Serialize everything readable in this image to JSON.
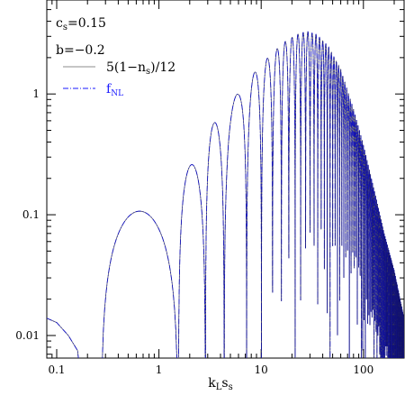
{
  "chart_data": {
    "type": "line",
    "title": "",
    "xlabel": "k_L s_s",
    "ylabel": "",
    "xscale": "log",
    "yscale": "log",
    "xlim": [
      0.08,
      250
    ],
    "ylim": [
      0.0065,
      6
    ],
    "x_ticks": [
      0.1,
      1,
      10,
      100
    ],
    "x_tick_labels": [
      "0.1",
      "1",
      "10",
      "100"
    ],
    "y_ticks": [
      0.01,
      0.1,
      1
    ],
    "y_tick_labels": [
      "0.01",
      "0.1",
      "1"
    ],
    "grid": false,
    "annotations": [
      {
        "text": "c_s=0.15"
      },
      {
        "text": "b=−0.2"
      }
    ],
    "legend": {
      "placement": "top-left",
      "entries": [
        {
          "label": "5(1−n_s)/12",
          "color": "#8c8c8c",
          "style": "solid"
        },
        {
          "label": "f_NL",
          "color": "#1a1aff",
          "style": "dash-dot"
        }
      ]
    },
    "series": [
      {
        "name": "5(1−n_s)/12",
        "color": "#8c8c8c",
        "style": "solid",
        "points": [
          [
            0.08,
            0.0139
          ],
          [
            0.1,
            0.0128
          ],
          [
            0.13,
            0.01
          ],
          [
            0.16,
            0.0075
          ],
          [
            0.27,
            0.0065
          ],
          [
            0.4,
            0.055
          ],
          [
            0.6,
            0.089
          ],
          [
            0.85,
            0.105
          ],
          [
            1.0,
            0.107
          ],
          [
            1.2,
            0.095
          ],
          [
            1.45,
            0.06
          ],
          [
            1.6,
            0.01
          ],
          [
            1.9,
            0.1
          ],
          [
            2.2,
            0.22
          ],
          [
            2.4,
            0.26
          ],
          [
            2.7,
            0.2
          ],
          [
            2.9,
            0.01
          ],
          [
            3.2,
            0.3
          ],
          [
            3.7,
            0.58
          ],
          [
            4.2,
            0.35
          ],
          [
            4.6,
            0.01
          ],
          [
            10,
            0.02
          ],
          [
            30,
            2.4
          ],
          [
            100,
            0.12
          ],
          [
            250,
            0.011
          ]
        ],
        "envelope": [
          [
            4.8,
            0.85
          ],
          [
            6,
            1.02
          ],
          [
            8,
            1.4
          ],
          [
            10,
            1.75
          ],
          [
            13,
            2.2
          ],
          [
            17,
            2.7
          ],
          [
            22,
            3.1
          ],
          [
            28,
            3.3
          ],
          [
            35,
            3.1
          ],
          [
            45,
            2.5
          ],
          [
            60,
            1.6
          ],
          [
            80,
            0.75
          ],
          [
            100,
            0.38
          ],
          [
            130,
            0.15
          ],
          [
            160,
            0.07
          ],
          [
            200,
            0.035
          ],
          [
            250,
            0.014
          ]
        ]
      },
      {
        "name": "f_NL",
        "color": "#1a1aff",
        "style": "dash-dot",
        "points": [
          [
            0.08,
            0.0139
          ],
          [
            0.1,
            0.0128
          ],
          [
            0.13,
            0.01
          ],
          [
            0.16,
            0.0075
          ],
          [
            0.27,
            0.0065
          ],
          [
            0.4,
            0.055
          ],
          [
            0.6,
            0.089
          ],
          [
            0.85,
            0.105
          ],
          [
            1.0,
            0.107
          ],
          [
            1.2,
            0.095
          ],
          [
            1.45,
            0.06
          ],
          [
            1.6,
            0.01
          ],
          [
            1.9,
            0.1
          ],
          [
            2.2,
            0.22
          ],
          [
            2.4,
            0.26
          ],
          [
            2.7,
            0.2
          ],
          [
            2.9,
            0.01
          ],
          [
            3.2,
            0.3
          ],
          [
            3.7,
            0.58
          ],
          [
            4.2,
            0.35
          ],
          [
            4.6,
            0.01
          ],
          [
            10,
            0.02
          ],
          [
            30,
            2.4
          ],
          [
            100,
            0.12
          ],
          [
            250,
            0.011
          ]
        ],
        "envelope": [
          [
            4.8,
            0.85
          ],
          [
            6,
            1.02
          ],
          [
            8,
            1.4
          ],
          [
            10,
            1.75
          ],
          [
            13,
            2.2
          ],
          [
            17,
            2.7
          ],
          [
            22,
            3.1
          ],
          [
            28,
            3.3
          ],
          [
            35,
            3.1
          ],
          [
            45,
            2.5
          ],
          [
            60,
            1.6
          ],
          [
            80,
            0.75
          ],
          [
            100,
            0.38
          ],
          [
            130,
            0.15
          ],
          [
            160,
            0.07
          ],
          [
            200,
            0.035
          ],
          [
            250,
            0.014
          ]
        ]
      }
    ]
  },
  "legend_text": {
    "cs_label": "c",
    "cs_sub": "s",
    "cs_value": "=0.15",
    "b_label": "b=−0.2",
    "ns_entry_prefix": "5(1−n",
    "ns_entry_sub": "s",
    "ns_entry_suffix": ")/12",
    "fnl_entry": "f",
    "fnl_sub": "NL"
  },
  "axis_title": {
    "main": "k",
    "sub1": "L",
    "mid": "s",
    "sub2": "s"
  },
  "colors": {
    "grey_line": "#8c8c8c",
    "blue_line": "#1a1aff",
    "dark_line": "#10104a"
  }
}
